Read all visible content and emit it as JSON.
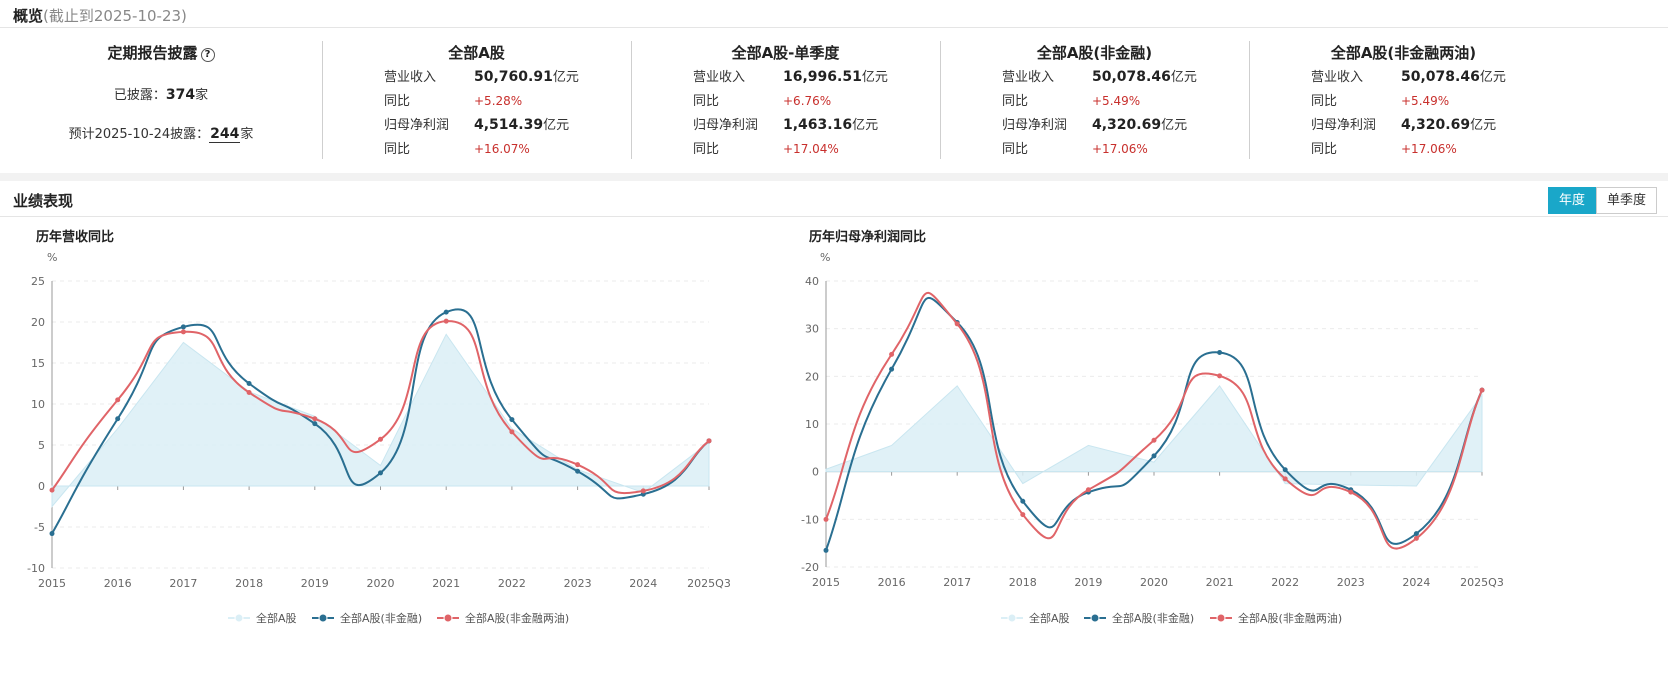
{
  "overview": {
    "title": "概览",
    "subtitle": "(截止到2025-10-23)",
    "disclosure": {
      "title": "定期报告披露",
      "help_icon": "question-circle-icon",
      "disclosed_label": "已披露：",
      "disclosed_count": "374",
      "disclosed_unit": "家",
      "forecast_label": "预计2025-10-24披露：",
      "forecast_count": "244",
      "forecast_unit": "家"
    },
    "stats": [
      {
        "title": "全部A股",
        "revenue_label": "营业收入",
        "revenue": "50,760.91",
        "revenue_unit": "亿元",
        "revenue_yoy_label": "同比",
        "revenue_yoy": "+5.28%",
        "profit_label": "归母净利润",
        "profit": "4,514.39",
        "profit_unit": "亿元",
        "profit_yoy_label": "同比",
        "profit_yoy": "+16.07%"
      },
      {
        "title": "全部A股-单季度",
        "revenue_label": "营业收入",
        "revenue": "16,996.51",
        "revenue_unit": "亿元",
        "revenue_yoy_label": "同比",
        "revenue_yoy": "+6.76%",
        "profit_label": "归母净利润",
        "profit": "1,463.16",
        "profit_unit": "亿元",
        "profit_yoy_label": "同比",
        "profit_yoy": "+17.04%"
      },
      {
        "title": "全部A股(非金融)",
        "revenue_label": "营业收入",
        "revenue": "50,078.46",
        "revenue_unit": "亿元",
        "revenue_yoy_label": "同比",
        "revenue_yoy": "+5.49%",
        "profit_label": "归母净利润",
        "profit": "4,320.69",
        "profit_unit": "亿元",
        "profit_yoy_label": "同比",
        "profit_yoy": "+17.06%"
      },
      {
        "title": "全部A股(非金融两油)",
        "revenue_label": "营业收入",
        "revenue": "50,078.46",
        "revenue_unit": "亿元",
        "revenue_yoy_label": "同比",
        "revenue_yoy": "+5.49%",
        "profit_label": "归母净利润",
        "profit": "4,320.69",
        "profit_unit": "亿元",
        "profit_yoy_label": "同比",
        "profit_yoy": "+17.06%"
      }
    ]
  },
  "performance": {
    "title": "业绩表现",
    "toggle_annual": "年度",
    "toggle_quarter": "单季度"
  },
  "colors": {
    "area_fill": "#dbeff6",
    "area_stroke": "#c9e6f0",
    "series_nonfin": "#2a6f91",
    "series_nonfin_ex_oil": "#e06468",
    "positive": "#c8302d",
    "accent": "#1aa7c9"
  },
  "chart_data": [
    {
      "type": "line",
      "title": "历年营收同比",
      "ylabel": "%",
      "xlabel": "",
      "categories": [
        "2015",
        "2016",
        "2017",
        "2018",
        "2019",
        "2020",
        "2021",
        "2022",
        "2023",
        "2024",
        "2025Q3"
      ],
      "ylim": [
        -10,
        25
      ],
      "yticks": [
        -10,
        -5,
        0,
        5,
        10,
        15,
        20,
        25
      ],
      "grid": true,
      "legend": "bottom",
      "series": [
        {
          "name": "全部A股",
          "style": "area",
          "values": [
            -2.5,
            7.0,
            17.5,
            11.5,
            8.5,
            2.5,
            18.5,
            7.0,
            2.0,
            -0.8,
            5.3
          ]
        },
        {
          "name": "全部A股(非金融)",
          "style": "smooth-line",
          "values": [
            -5.8,
            8.2,
            19.4,
            12.5,
            7.6,
            1.6,
            21.2,
            8.1,
            1.8,
            -1.0,
            5.5
          ]
        },
        {
          "name": "全部A股(非金融两油)",
          "style": "smooth-line",
          "values": [
            -0.5,
            10.5,
            18.8,
            11.4,
            8.2,
            5.7,
            20.1,
            6.6,
            2.6,
            -0.6,
            5.5
          ]
        }
      ]
    },
    {
      "type": "line",
      "title": "历年归母净利润同比",
      "ylabel": "%",
      "xlabel": "",
      "categories": [
        "2015",
        "2016",
        "2017",
        "2018",
        "2019",
        "2020",
        "2021",
        "2022",
        "2023",
        "2024",
        "2025Q3"
      ],
      "ylim": [
        -20,
        40
      ],
      "yticks": [
        -20,
        -10,
        0,
        10,
        20,
        30,
        40
      ],
      "grid": true,
      "legend": "bottom",
      "series": [
        {
          "name": "全部A股",
          "style": "area",
          "values": [
            0.5,
            5.5,
            18.0,
            -2.5,
            5.5,
            2.0,
            18.0,
            -2.5,
            -2.8,
            -3.0,
            16.1
          ]
        },
        {
          "name": "全部A股(非金融)",
          "style": "smooth-line",
          "values": [
            -16.5,
            21.5,
            31.3,
            -6.2,
            -4.3,
            3.3,
            25.0,
            0.4,
            -3.8,
            -13.0,
            17.1
          ]
        },
        {
          "name": "全部A股(非金融两油)",
          "style": "smooth-line",
          "values": [
            -10.0,
            24.6,
            31.0,
            -9.0,
            -3.8,
            6.6,
            20.1,
            -1.5,
            -4.3,
            -14.0,
            17.1
          ]
        }
      ]
    }
  ]
}
